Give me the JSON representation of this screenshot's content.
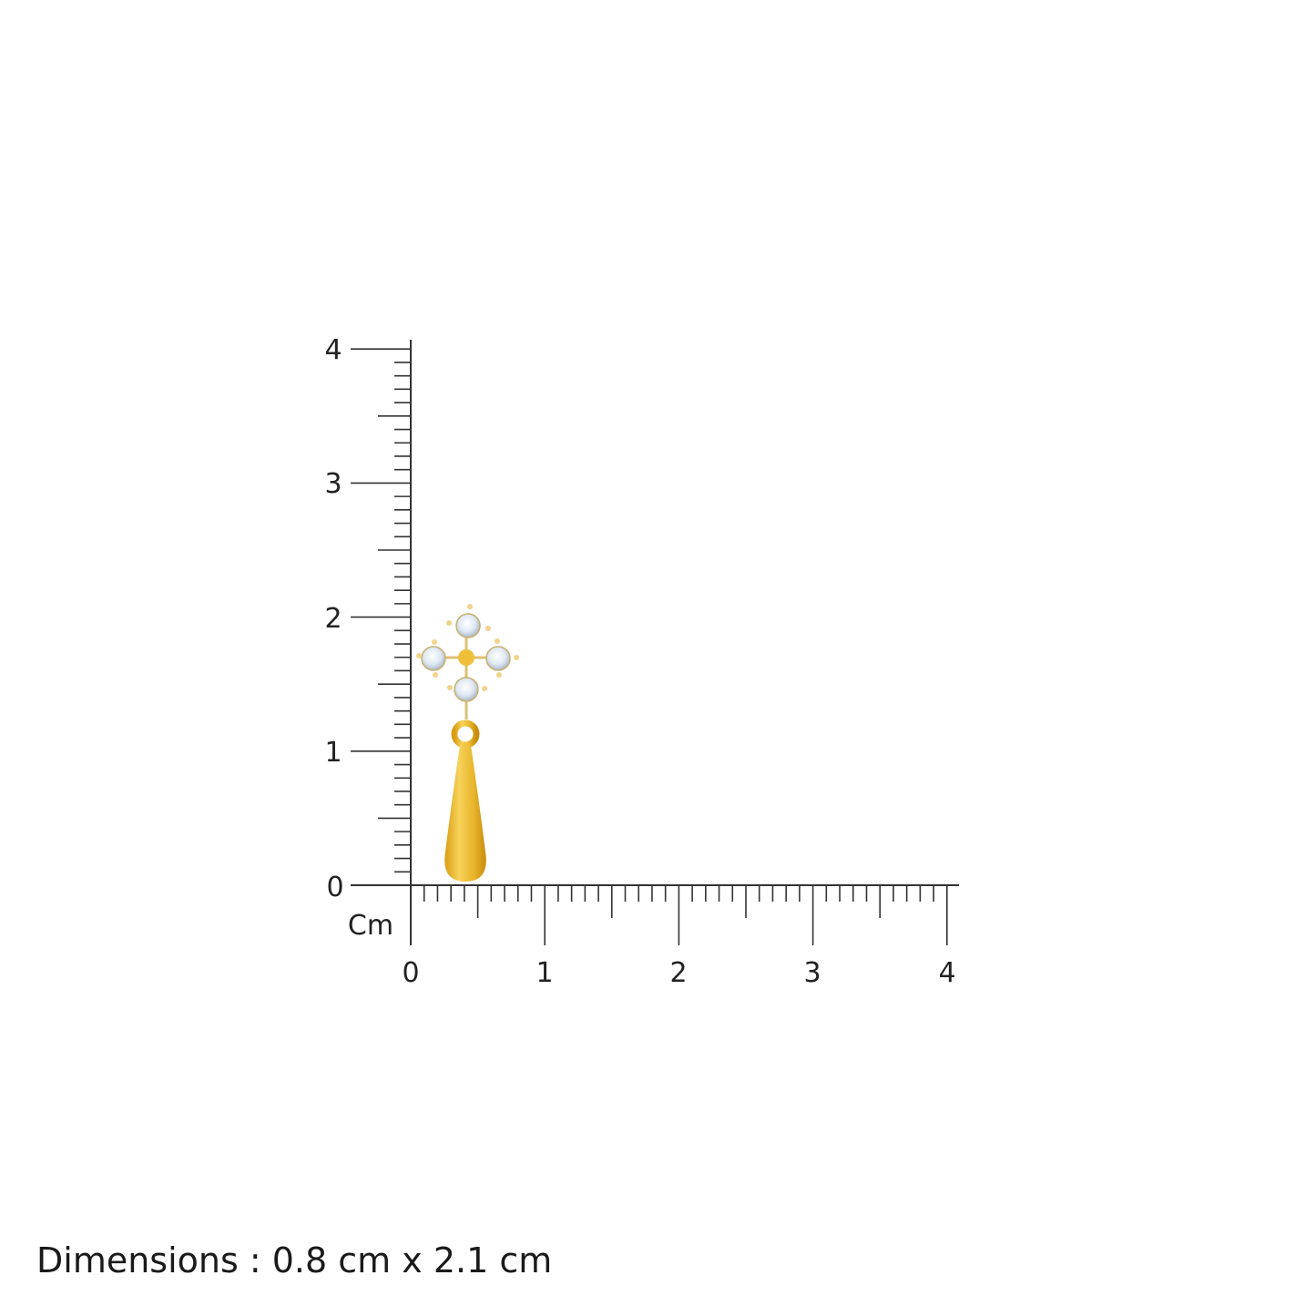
{
  "ruler": {
    "unit_label": "Cm",
    "x_tick_labels": [
      "0",
      "1",
      "2",
      "3",
      "4"
    ],
    "y_tick_labels": [
      "0",
      "1",
      "2",
      "3",
      "4"
    ],
    "minor_divisions_per_unit": 10,
    "range_cm": [
      0,
      4
    ]
  },
  "product": {
    "type": "drop earring",
    "stones": 4,
    "colors": {
      "gold": "#e8b52c",
      "stone": "#dfe8f2",
      "prong": "#f2d38a"
    }
  },
  "caption": {
    "text": "Dimensions : 0.8 cm x 2.1 cm"
  }
}
